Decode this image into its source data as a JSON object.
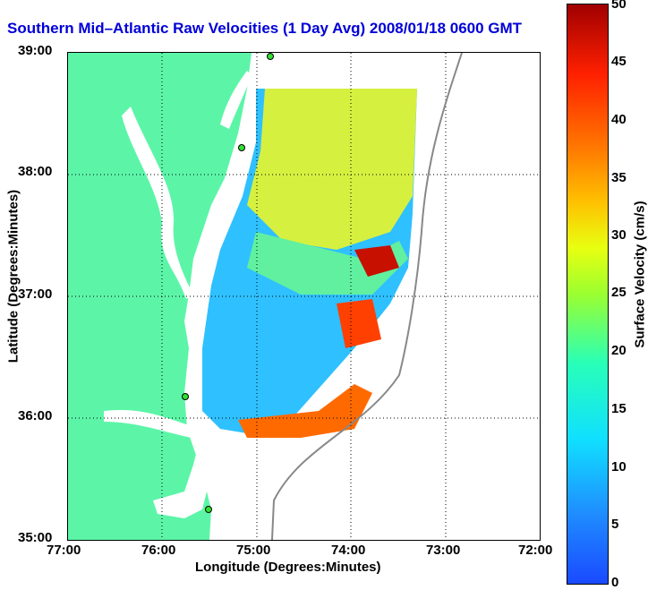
{
  "title": "Southern Mid–Atlantic Raw Velocities (1 Day Avg) 2008/01/18 0600 GMT",
  "xlabel": "Longitude (Degrees:Minutes)",
  "ylabel": "Latitude (Degrees:Minutes)",
  "x_ticks": [
    "77:00",
    "76:00",
    "75:00",
    "74:00",
    "73:00",
    "72:00"
  ],
  "y_ticks": [
    "39:00",
    "38:00",
    "37:00",
    "36:00",
    "35:00"
  ],
  "colorbar": {
    "label": "Surface Velocity (cm/s)",
    "ticks": [
      "50",
      "45",
      "40",
      "35",
      "30",
      "25",
      "20",
      "15",
      "10",
      "5",
      "0"
    ]
  },
  "colors": {
    "land": "#5cf5a8",
    "title": "#0000d8"
  }
}
